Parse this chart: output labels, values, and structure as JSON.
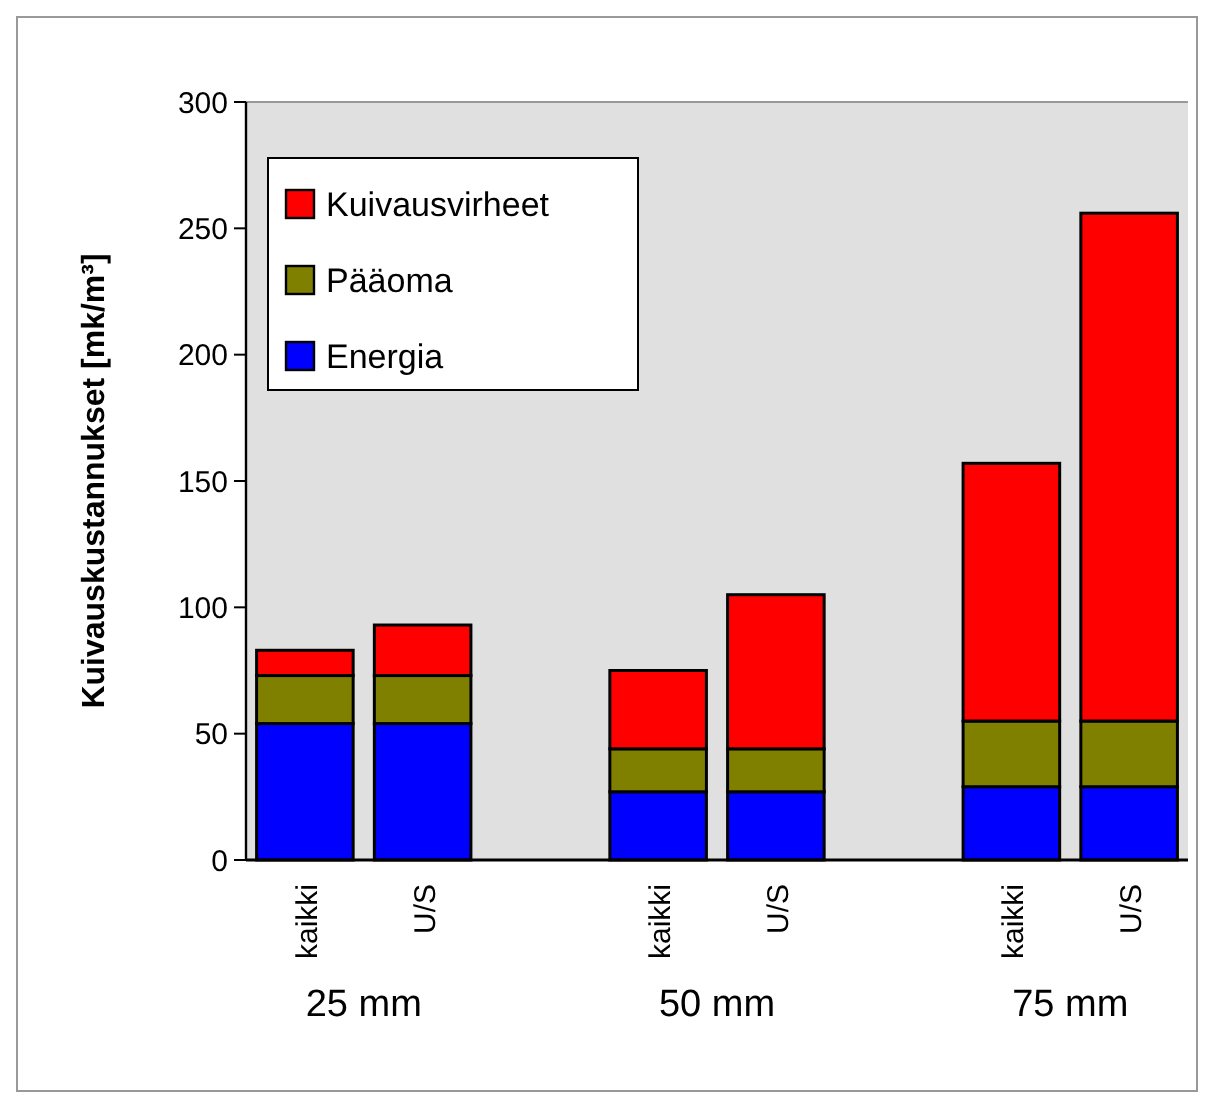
{
  "chart_data": {
    "type": "bar",
    "stacked": true,
    "ylabel": "Kuivauskustannukset [mk/m³]",
    "categories": [
      "kaikki",
      "U/S",
      null,
      "kaikki",
      "U/S",
      null,
      "kaikki",
      "U/S"
    ],
    "series": [
      {
        "name": "Energia",
        "color": "#0000ff",
        "values": [
          54,
          54,
          null,
          27,
          27,
          null,
          29,
          29
        ]
      },
      {
        "name": "Pääoma",
        "color": "#808000",
        "values": [
          19,
          19,
          null,
          17,
          17,
          null,
          26,
          26
        ]
      },
      {
        "name": "Kuivausvirheet",
        "color": "#ff0000",
        "values": [
          10,
          20,
          null,
          31,
          61,
          null,
          102,
          201
        ]
      }
    ],
    "ylim": [
      0,
      300
    ],
    "yticks": [
      0,
      50,
      100,
      150,
      200,
      250,
      300
    ],
    "legend": "top left",
    "annotations": [
      "25 mm",
      "50 mm",
      "75 mm"
    ]
  }
}
